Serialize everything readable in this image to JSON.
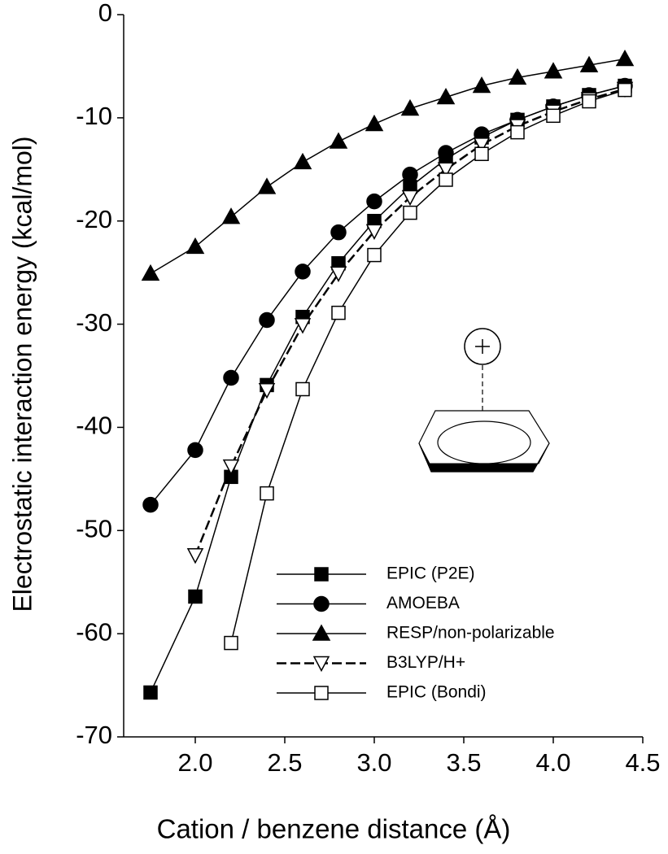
{
  "chart_data": {
    "type": "line",
    "x_label": "Cation / benzene distance (Å)",
    "y_label": "Electrostatic interaction energy (kcal/mol)",
    "x": [
      1.75,
      2.0,
      2.2,
      2.4,
      2.6,
      2.8,
      3.0,
      3.2,
      3.4,
      3.6,
      3.8,
      4.0,
      4.2,
      4.4
    ],
    "xlim": [
      1.6,
      4.5
    ],
    "ylim": [
      -70,
      0
    ],
    "xticks": [
      {
        "value": 2,
        "label": "2.0"
      },
      2.5,
      {
        "value": 3,
        "label": "3.0"
      },
      3.5,
      {
        "value": 4,
        "label": "4.0"
      },
      4.5
    ],
    "yticks": [
      0,
      -10,
      -20,
      -30,
      -40,
      -50,
      -60,
      -70
    ],
    "series": [
      {
        "name": "EPIC (P2E)",
        "color": "#000000",
        "marker": "square",
        "filled": true,
        "line_style": "solid",
        "values": [
          -65.7,
          -56.4,
          -44.8,
          -35.9,
          -29.3,
          -24.1,
          -20.0,
          -16.7,
          -14.0,
          -11.9,
          -10.2,
          -8.9,
          -7.8,
          -6.9
        ]
      },
      {
        "name": "AMOEBA",
        "color": "#000000",
        "marker": "circle",
        "filled": true,
        "line_style": "solid",
        "values": [
          -47.5,
          -42.2,
          -35.2,
          -29.6,
          -24.9,
          -21.1,
          -18.1,
          -15.5,
          -13.4,
          -11.6,
          -10.2,
          -8.9,
          -7.8,
          -6.9
        ]
      },
      {
        "name": "RESP/non-polarizable",
        "color": "#000000",
        "marker": "triangle",
        "filled": true,
        "line_style": "solid",
        "values": [
          -25.1,
          -22.5,
          -19.6,
          -16.7,
          -14.3,
          -12.3,
          -10.6,
          -9.1,
          -8.0,
          -6.9,
          -6.1,
          -5.5,
          -4.9,
          -4.3
        ]
      },
      {
        "name": "B3LYP/H+",
        "color": "#000000",
        "marker": "triangle-down",
        "filled": false,
        "line_style": "dashed",
        "values": [
          null,
          -52.4,
          -43.8,
          -36.4,
          -30.1,
          -25.1,
          -21.0,
          -17.7,
          -15.0,
          -12.6,
          -10.8,
          -9.4,
          -8.2,
          -7.2
        ]
      },
      {
        "name": "EPIC (Bondi)",
        "color": "#000000",
        "marker": "square",
        "filled": false,
        "line_style": "solid",
        "values": [
          null,
          null,
          -60.9,
          -46.4,
          -36.3,
          -28.9,
          -23.3,
          -19.2,
          -16.0,
          -13.5,
          -11.4,
          -9.8,
          -8.4,
          -7.3
        ]
      }
    ]
  }
}
